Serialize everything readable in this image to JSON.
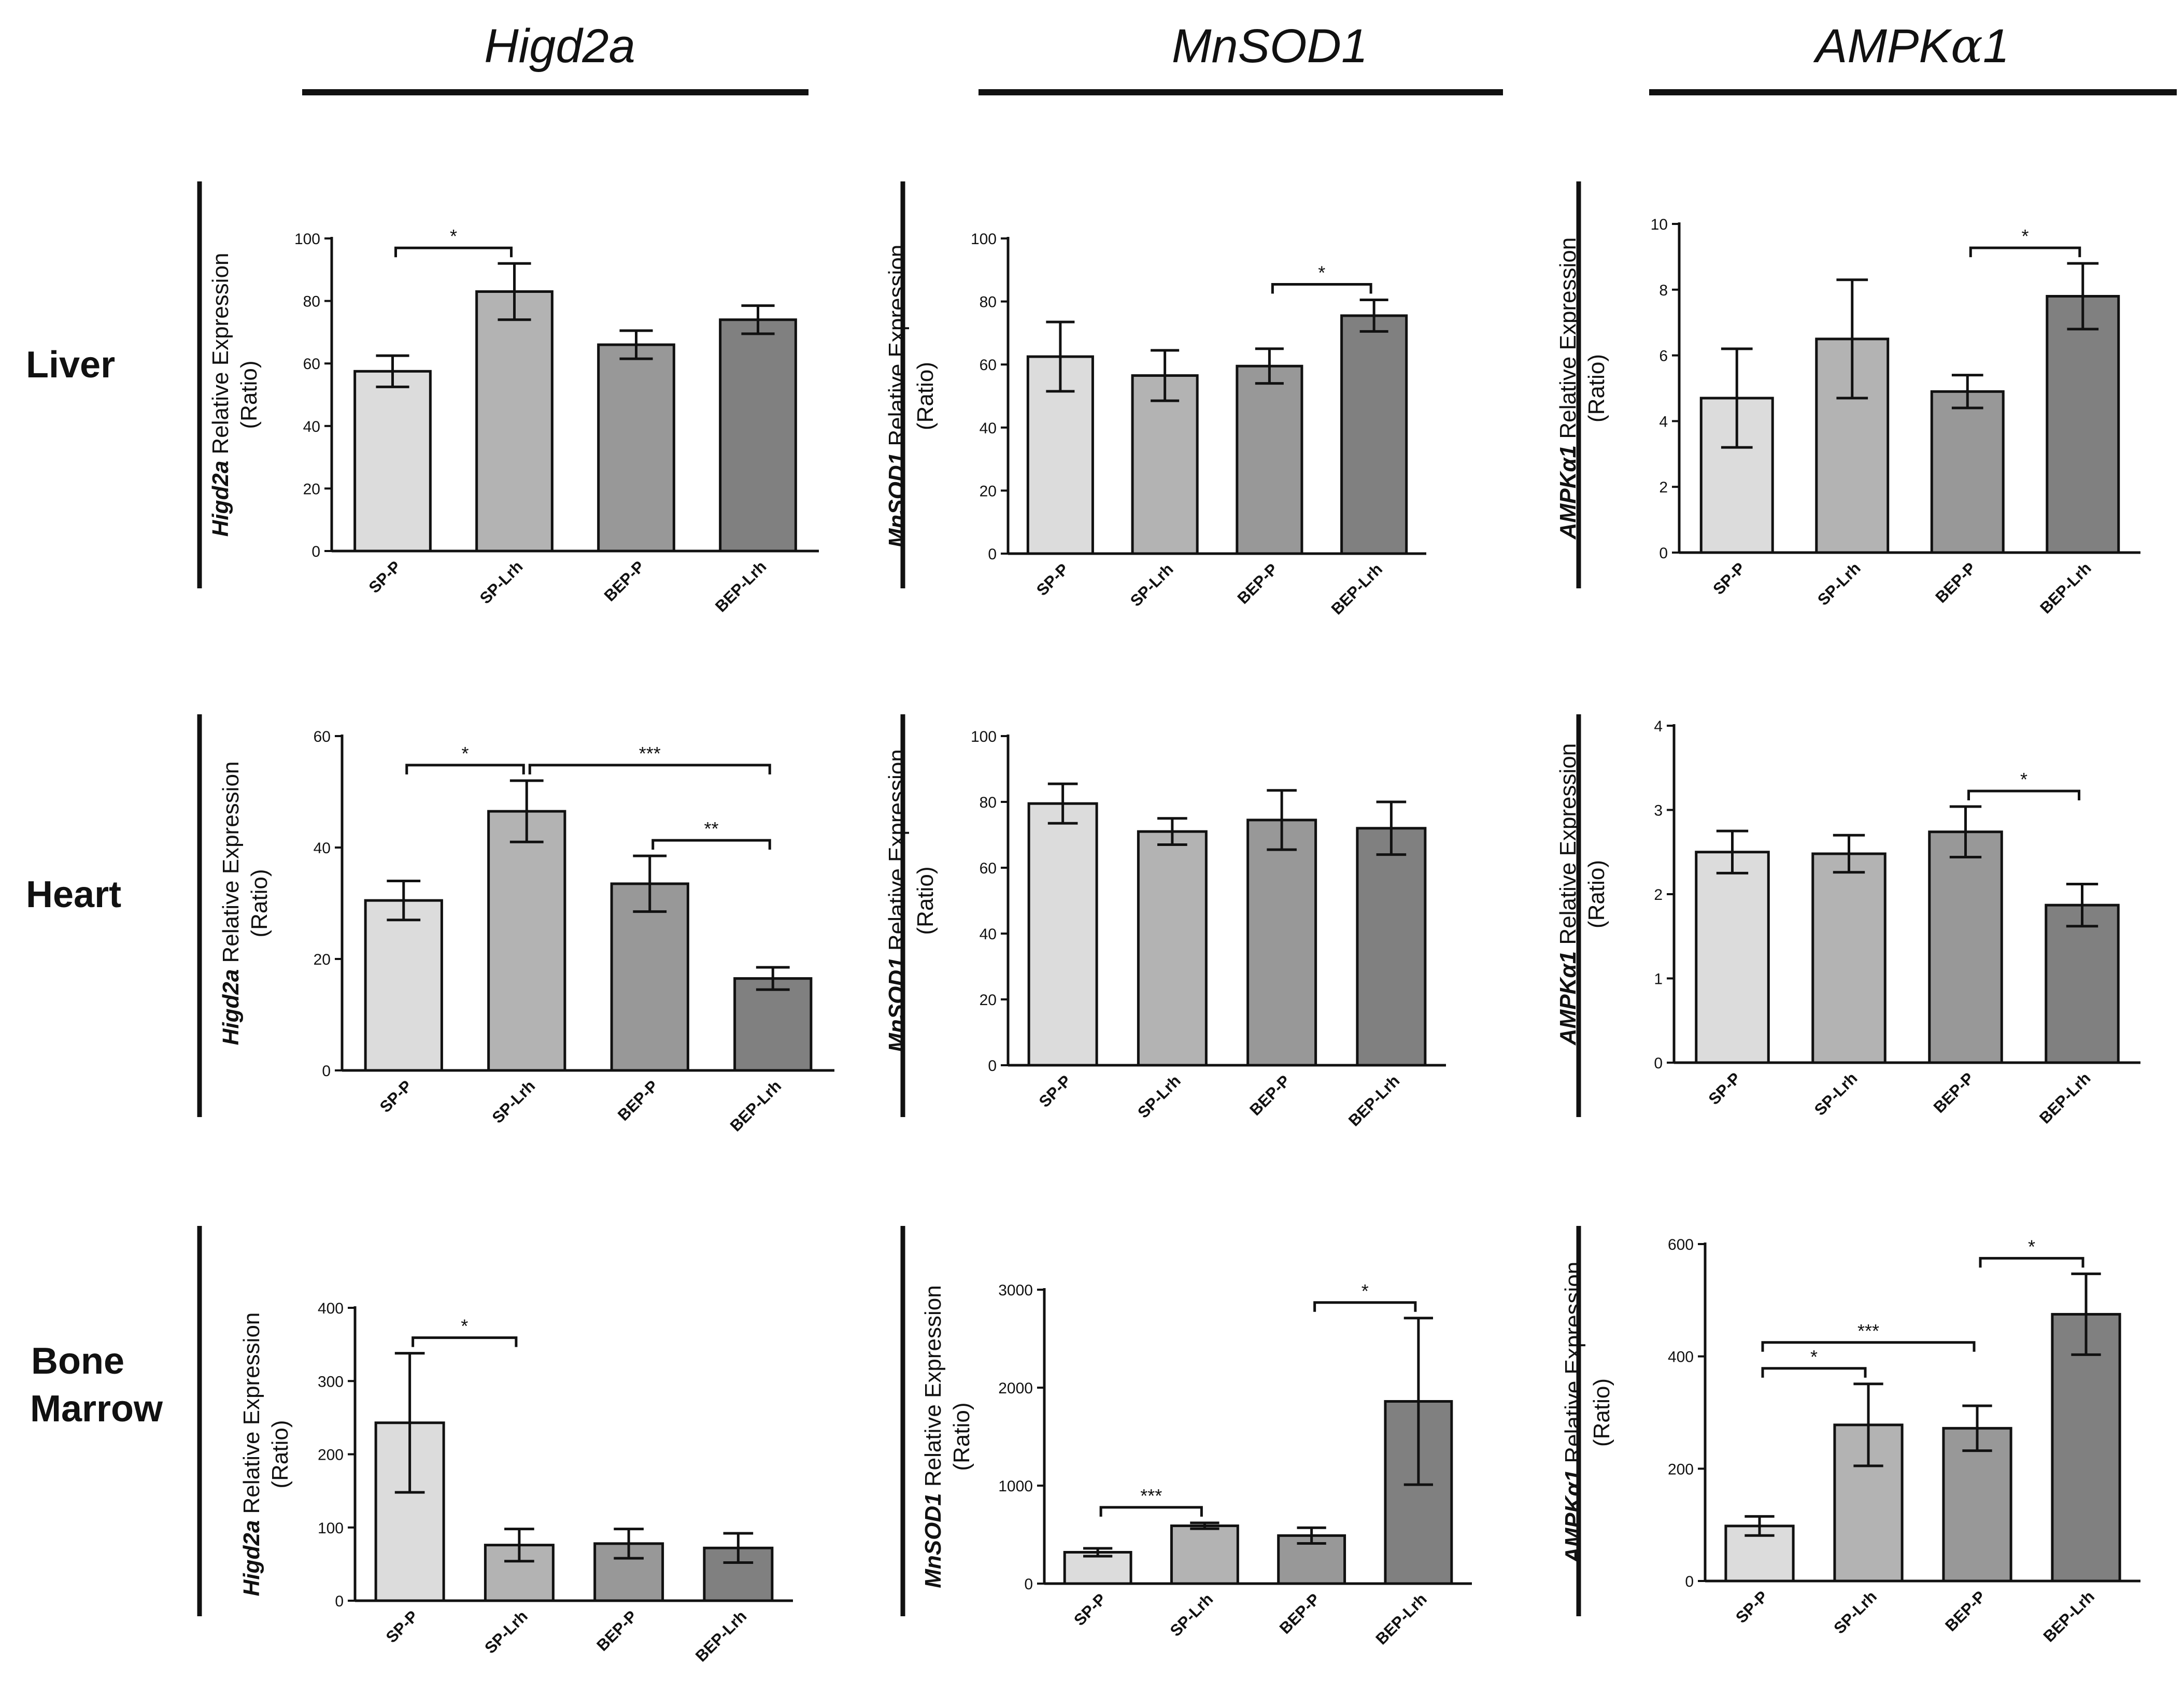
{
  "genes": [
    "Higd2a",
    "MnSOD1",
    "AMPKα1"
  ],
  "gene_markup": [
    "Higd2a",
    "MnSOD1",
    "AMPK<tspan font-family=\"DejaVu Serif\">α</tspan>1"
  ],
  "tissues": [
    [
      "Liver"
    ],
    [
      "Heart"
    ],
    [
      "Bone",
      "Marrow"
    ]
  ],
  "colors": [
    "#dcdcdc",
    "#b3b3b3",
    "#989898",
    "#808080"
  ],
  "chart_data": [
    {
      "type": "bar",
      "row": 0,
      "col": 0,
      "title": "Higd2a",
      "ylabel_gene": "Higd2a",
      "ylabel_rest": " Relative Expression",
      "ylabel_unit": "(Ratio)",
      "categories": [
        "SP-P",
        "SP-Lrh",
        "BEP-P",
        "BEP-Lrh"
      ],
      "values": [
        57.5,
        83,
        66,
        74
      ],
      "errors": [
        5,
        9,
        4.5,
        4.5
      ],
      "ylim": [
        0,
        100
      ],
      "ticks": [
        0,
        20,
        40,
        60,
        80,
        100
      ],
      "significance": [
        {
          "from": 0,
          "to": 1,
          "label": "*"
        }
      ]
    },
    {
      "type": "bar",
      "row": 0,
      "col": 1,
      "title": "MnSOD1",
      "ylabel_gene": "MnSOD1",
      "ylabel_rest": " Relative Expression",
      "ylabel_unit": "(Ratio)",
      "categories": [
        "SP-P",
        "SP-Lrh",
        "BEP-P",
        "BEP-Lrh"
      ],
      "values": [
        62.5,
        56.5,
        59.5,
        75.5
      ],
      "errors": [
        11,
        8,
        5.5,
        5
      ],
      "ylim": [
        0,
        100
      ],
      "ticks": [
        0,
        20,
        40,
        60,
        80,
        100
      ],
      "significance": [
        {
          "from": 2,
          "to": 3,
          "label": "*"
        }
      ]
    },
    {
      "type": "bar",
      "row": 0,
      "col": 2,
      "title": "AMPKα1",
      "ylabel_gene": "AMPKα1",
      "ylabel_rest": " Relative Expression",
      "ylabel_unit": "(Ratio)",
      "categories": [
        "SP-P",
        "SP-Lrh",
        "BEP-P",
        "BEP-Lrh"
      ],
      "values": [
        4.7,
        6.5,
        4.9,
        7.8
      ],
      "errors": [
        1.5,
        1.8,
        0.5,
        1
      ],
      "ylim": [
        0,
        10
      ],
      "ticks": [
        0,
        2,
        4,
        6,
        8,
        10
      ],
      "significance": [
        {
          "from": 2,
          "to": 3,
          "label": "*"
        }
      ]
    },
    {
      "type": "bar",
      "row": 1,
      "col": 0,
      "title": "Higd2a",
      "ylabel_gene": "Higd2a",
      "ylabel_rest": " Relative Expression",
      "ylabel_unit": "(Ratio)",
      "categories": [
        "SP-P",
        "SP-Lrh",
        "BEP-P",
        "BEP-Lrh"
      ],
      "values": [
        30.5,
        46.5,
        33.5,
        16.5
      ],
      "errors": [
        3.5,
        5.5,
        5,
        2
      ],
      "ylim": [
        0,
        60
      ],
      "ticks": [
        0,
        20,
        40,
        60
      ],
      "significance": [
        {
          "from": 0,
          "to": 1,
          "label": "*"
        },
        {
          "from": 1,
          "to": 3,
          "label": "***"
        },
        {
          "from": 2,
          "to": 3,
          "label": "**"
        }
      ]
    },
    {
      "type": "bar",
      "row": 1,
      "col": 1,
      "title": "MnSOD1",
      "ylabel_gene": "MnSOD1",
      "ylabel_rest": " Relative Expression",
      "ylabel_unit": "(Ratio)",
      "categories": [
        "SP-P",
        "SP-Lrh",
        "BEP-P",
        "BEP-Lrh"
      ],
      "values": [
        79.5,
        71,
        74.5,
        72
      ],
      "errors": [
        6,
        4,
        9,
        8
      ],
      "ylim": [
        0,
        100
      ],
      "ticks": [
        0,
        20,
        40,
        60,
        80,
        100
      ],
      "significance": []
    },
    {
      "type": "bar",
      "row": 1,
      "col": 2,
      "title": "AMPKα1",
      "ylabel_gene": "AMPKα1",
      "ylabel_rest": " Relative Expression",
      "ylabel_unit": "(Ratio)",
      "categories": [
        "SP-P",
        "SP-Lrh",
        "BEP-P",
        "BEP-Lrh"
      ],
      "values": [
        2.5,
        2.48,
        2.74,
        1.87
      ],
      "errors": [
        0.25,
        0.22,
        0.3,
        0.25
      ],
      "ylim": [
        0,
        4
      ],
      "ticks": [
        0,
        1,
        2,
        3,
        4
      ],
      "significance": [
        {
          "from": 2,
          "to": 3,
          "label": "*"
        }
      ]
    },
    {
      "type": "bar",
      "row": 2,
      "col": 0,
      "title": "Higd2a",
      "ylabel_gene": "Higd2a",
      "ylabel_rest": " Relative Expression",
      "ylabel_unit": "(Ratio)",
      "categories": [
        "SP-P",
        "SP-Lrh",
        "BEP-P",
        "BEP-Lrh"
      ],
      "values": [
        243,
        76,
        78,
        72
      ],
      "errors": [
        95,
        22,
        20,
        20
      ],
      "ylim": [
        0,
        400
      ],
      "ticks": [
        0,
        100,
        200,
        300,
        400
      ],
      "significance": [
        {
          "from": 0,
          "to": 1,
          "label": "*"
        }
      ]
    },
    {
      "type": "bar",
      "row": 2,
      "col": 1,
      "title": "MnSOD1",
      "ylabel_gene": "MnSOD1",
      "ylabel_rest": " Relative Expression",
      "ylabel_unit": "(Ratio)",
      "categories": [
        "SP-P",
        "SP-Lrh",
        "BEP-P",
        "BEP-Lrh"
      ],
      "values": [
        320,
        590,
        490,
        1860
      ],
      "errors": [
        40,
        30,
        80,
        850
      ],
      "ylim": [
        0,
        3000
      ],
      "ticks": [
        0,
        1000,
        2000,
        3000
      ],
      "significance": [
        {
          "from": 0,
          "to": 1,
          "label": "***"
        },
        {
          "from": 2,
          "to": 3,
          "label": "*"
        }
      ]
    },
    {
      "type": "bar",
      "row": 2,
      "col": 2,
      "title": "AMPKα1",
      "ylabel_gene": "AMPKα1",
      "ylabel_rest": " Relative Expression",
      "ylabel_unit": "(Ratio)",
      "categories": [
        "SP-P",
        "SP-Lrh",
        "BEP-P",
        "BEP-Lrh"
      ],
      "values": [
        98,
        278,
        272,
        475
      ],
      "errors": [
        17,
        73,
        40,
        72
      ],
      "ylim": [
        0,
        600
      ],
      "ticks": [
        0,
        200,
        400,
        600
      ],
      "significance": [
        {
          "from": 0,
          "to": 1,
          "label": "*"
        },
        {
          "from": 0,
          "to": 2,
          "label": "***"
        },
        {
          "from": 2,
          "to": 3,
          "label": "*"
        }
      ]
    }
  ]
}
